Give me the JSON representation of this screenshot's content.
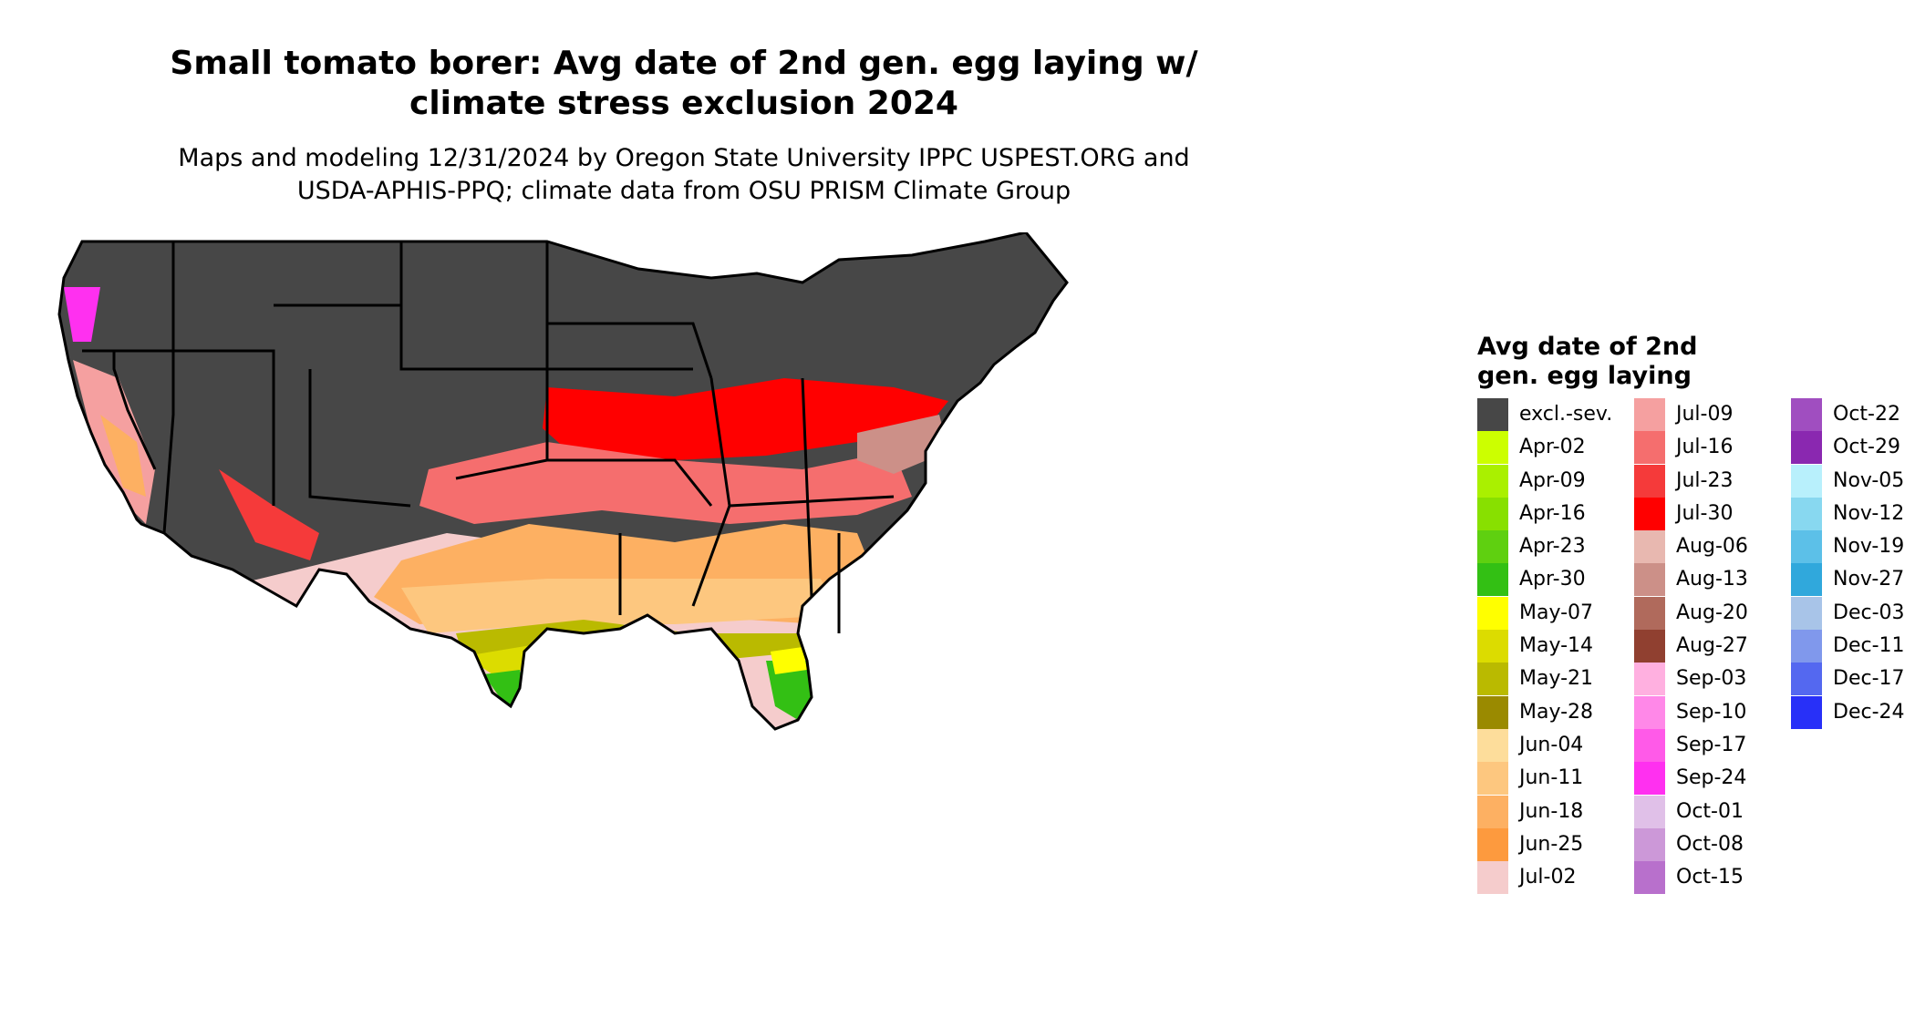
{
  "title": "Small tomato borer: Avg date of 2nd gen. egg laying w/ climate stress exclusion 2024",
  "subtitle": "Maps and modeling 12/31/2024 by Oregon State University IPPC USPEST.ORG and USDA-APHIS-PPQ; climate data from OSU PRISM Climate Group",
  "legend": {
    "title": "Avg date of 2nd gen. egg laying",
    "columns": [
      [
        {
          "label": "excl.-sev.",
          "color": "#474747"
        },
        {
          "label": "Apr-02",
          "color": "#ccff00"
        },
        {
          "label": "Apr-09",
          "color": "#aaf000"
        },
        {
          "label": "Apr-16",
          "color": "#88e000"
        },
        {
          "label": "Apr-23",
          "color": "#5fd010"
        },
        {
          "label": "Apr-30",
          "color": "#33c014"
        },
        {
          "label": "May-07",
          "color": "#ffff00"
        },
        {
          "label": "May-14",
          "color": "#dcdc00"
        },
        {
          "label": "May-21",
          "color": "#baba00"
        },
        {
          "label": "May-28",
          "color": "#9a8a00"
        },
        {
          "label": "Jun-04",
          "color": "#fddd9b"
        },
        {
          "label": "Jun-11",
          "color": "#fdc77f"
        },
        {
          "label": "Jun-18",
          "color": "#fdb062"
        },
        {
          "label": "Jun-25",
          "color": "#fd9a3e"
        },
        {
          "label": "Jul-02",
          "color": "#f5cccc"
        }
      ],
      [
        {
          "label": "Jul-09",
          "color": "#f5a0a0"
        },
        {
          "label": "Jul-16",
          "color": "#f56e6e"
        },
        {
          "label": "Jul-23",
          "color": "#f53a3a"
        },
        {
          "label": "Jul-30",
          "color": "#ff0000"
        },
        {
          "label": "Aug-06",
          "color": "#e8b8b0"
        },
        {
          "label": "Aug-13",
          "color": "#cc9088"
        },
        {
          "label": "Aug-20",
          "color": "#b06a5c"
        },
        {
          "label": "Aug-27",
          "color": "#904030"
        },
        {
          "label": "Sep-03",
          "color": "#ffb0e0"
        },
        {
          "label": "Sep-10",
          "color": "#ff88e8"
        },
        {
          "label": "Sep-17",
          "color": "#ff5ae8"
        },
        {
          "label": "Sep-24",
          "color": "#ff30f0"
        },
        {
          "label": "Oct-01",
          "color": "#e0c0e8"
        },
        {
          "label": "Oct-08",
          "color": "#cc98d8"
        },
        {
          "label": "Oct-15",
          "color": "#b870cc"
        }
      ],
      [
        {
          "label": "Oct-22",
          "color": "#a04ec0"
        },
        {
          "label": "Oct-29",
          "color": "#8a28b0"
        },
        {
          "label": "Nov-05",
          "color": "#b8f0fc"
        },
        {
          "label": "Nov-12",
          "color": "#88d8f0"
        },
        {
          "label": "Nov-19",
          "color": "#5cc0e8"
        },
        {
          "label": "Nov-27",
          "color": "#30a8dc"
        },
        {
          "label": "Dec-03",
          "color": "#a8c4e8"
        },
        {
          "label": "Dec-11",
          "color": "#8098ec"
        },
        {
          "label": "Dec-17",
          "color": "#5468f0"
        },
        {
          "label": "Dec-24",
          "color": "#2830f8"
        }
      ]
    ]
  }
}
